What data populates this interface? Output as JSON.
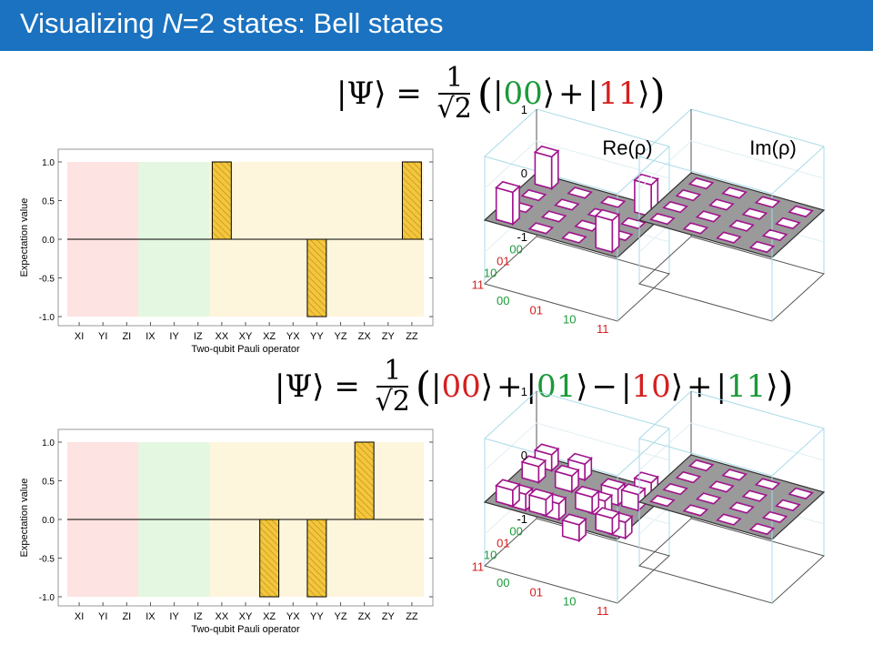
{
  "slide": {
    "title_part1": "Visualizing ",
    "title_italic": "N",
    "title_part2": "=2 states: Bell states",
    "accent": "#1a72c0"
  },
  "formulas": [
    {
      "lhs": "|Ψ⟩ = ",
      "coef_num": "1",
      "coef_den": "√2",
      "terms": [
        {
          "sign": "",
          "ket": "00",
          "color": "#1a9a3a"
        },
        {
          "sign": "+",
          "ket": "11",
          "color": "#d62020"
        }
      ]
    },
    {
      "lhs": "|Ψ⟩ = ",
      "coef_num": "1",
      "coef_den": "√2",
      "terms": [
        {
          "sign": "",
          "ket": "00",
          "color": "#d62020"
        },
        {
          "sign": "+",
          "ket": "01",
          "color": "#1a9a3a"
        },
        {
          "sign": "−",
          "ket": "10",
          "color": "#d62020"
        },
        {
          "sign": "+",
          "ket": "11",
          "color": "#1a9a3a"
        }
      ]
    }
  ],
  "chart_data": [
    {
      "type": "bar",
      "xlabel": "Two-qubit Pauli operator",
      "ylabel": "Expectation value",
      "ylim": [
        -1.0,
        1.0
      ],
      "yticks": [
        "1.0",
        "0.5",
        "0.0",
        "-0.5",
        "-1.0"
      ],
      "categories": [
        "XI",
        "YI",
        "ZI",
        "IX",
        "IY",
        "IZ",
        "XX",
        "XY",
        "XZ",
        "YX",
        "YY",
        "YZ",
        "ZX",
        "ZY",
        "ZZ"
      ],
      "values": [
        0,
        0,
        0,
        0,
        0,
        0,
        1,
        0,
        0,
        0,
        -1,
        0,
        0,
        0,
        1
      ],
      "region_colors": [
        "#fde3e1",
        "#e4f7e0",
        "#fdf5dc"
      ],
      "bar_color": "#f3c63d"
    },
    {
      "type": "bar",
      "xlabel": "Two-qubit Pauli operator",
      "ylabel": "Expectation value",
      "ylim": [
        -1.0,
        1.0
      ],
      "yticks": [
        "1.0",
        "0.5",
        "0.0",
        "-0.5",
        "-1.0"
      ],
      "categories": [
        "XI",
        "YI",
        "ZI",
        "IX",
        "IY",
        "IZ",
        "XX",
        "XY",
        "XZ",
        "YX",
        "YY",
        "YZ",
        "ZX",
        "ZY",
        "ZZ"
      ],
      "values": [
        0,
        0,
        0,
        0,
        0,
        0,
        0,
        0,
        -1,
        0,
        -1,
        0,
        1,
        0,
        0
      ],
      "region_colors": [
        "#fde3e1",
        "#e4f7e0",
        "#fdf5dc"
      ],
      "bar_color": "#f3c63d"
    },
    {
      "type": "heatmap",
      "title": "Re(ρ)",
      "zticks": [
        "1",
        "0",
        "-1"
      ],
      "row_labels": [
        "00",
        "01",
        "10",
        "11"
      ],
      "col_labels": [
        "00",
        "01",
        "10",
        "11"
      ],
      "values": [
        [
          0.5,
          0,
          0,
          0.5
        ],
        [
          0,
          0,
          0,
          0
        ],
        [
          0,
          0,
          0,
          0
        ],
        [
          0.5,
          0,
          0,
          0.5
        ]
      ]
    },
    {
      "type": "heatmap",
      "title": "Im(ρ)",
      "values": [
        [
          0,
          0,
          0,
          0
        ],
        [
          0,
          0,
          0,
          0
        ],
        [
          0,
          0,
          0,
          0
        ],
        [
          0,
          0,
          0,
          0
        ]
      ]
    },
    {
      "type": "heatmap",
      "zticks": [
        "1",
        "0",
        "-1"
      ],
      "row_labels": [
        "00",
        "01",
        "10",
        "11"
      ],
      "col_labels": [
        "00",
        "01",
        "10",
        "11"
      ],
      "values": [
        [
          0.25,
          0.25,
          -0.25,
          0.25
        ],
        [
          0.25,
          0.25,
          -0.25,
          0.25
        ],
        [
          -0.25,
          -0.25,
          0.25,
          -0.25
        ],
        [
          0.25,
          0.25,
          -0.25,
          0.25
        ]
      ]
    },
    {
      "type": "heatmap",
      "values": [
        [
          0,
          0,
          0,
          0
        ],
        [
          0,
          0,
          0,
          0
        ],
        [
          0,
          0,
          0,
          0
        ],
        [
          0,
          0,
          0,
          0
        ]
      ]
    }
  ],
  "colors": {
    "label_green": "#1a9a3a",
    "label_red": "#d62020",
    "bar3d_edge": "#a0148c",
    "floor": "#9a9a9a"
  }
}
